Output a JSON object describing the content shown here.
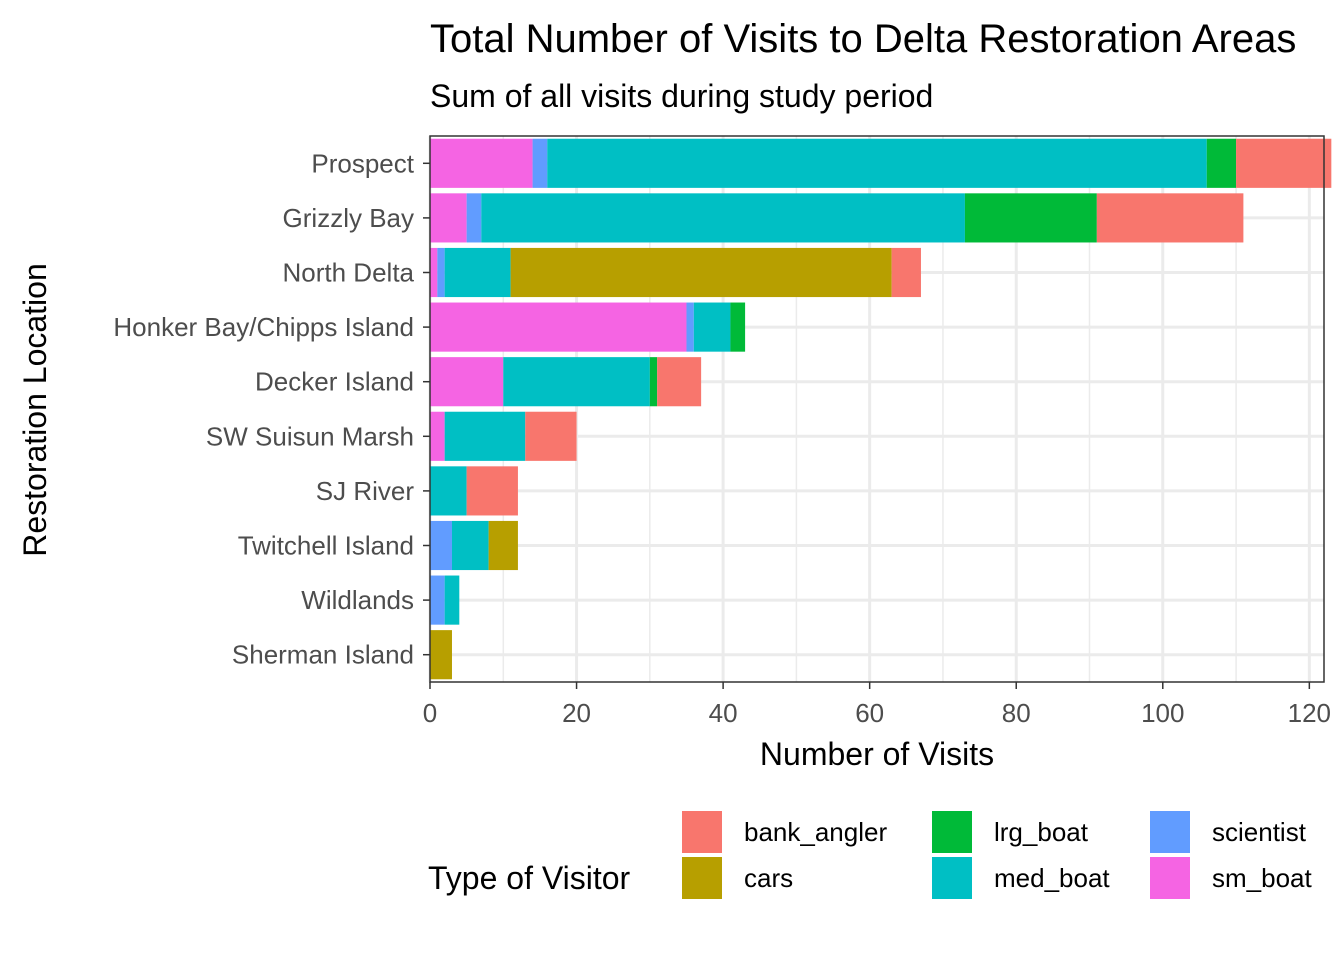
{
  "chart_data": {
    "type": "bar",
    "orientation": "horizontal",
    "stacked": true,
    "title": "Total Number of Visits to Delta Restoration Areas",
    "subtitle": "Sum of all visits during study period",
    "xlabel": "Number of Visits",
    "ylabel": "Restoration Location",
    "xlim": [
      0,
      122
    ],
    "xticks": [
      0,
      20,
      40,
      60,
      80,
      100,
      120
    ],
    "grid": true,
    "legend": {
      "title": "Type of Visitor",
      "position": "bottom"
    },
    "categories": [
      "Sherman Island",
      "Wildlands",
      "Twitchell Island",
      "SJ River",
      "SW Suisun Marsh",
      "Decker Island",
      "Honker Bay/Chipps Island",
      "North Delta",
      "Grizzly Bay",
      "Prospect"
    ],
    "stack_order": [
      "sm_boat",
      "scientist",
      "med_boat",
      "lrg_boat",
      "cars",
      "bank_angler"
    ],
    "legend_order": [
      "bank_angler",
      "cars",
      "lrg_boat",
      "med_boat",
      "scientist",
      "sm_boat"
    ],
    "series": [
      {
        "name": "sm_boat",
        "color": "#F564E3",
        "values": [
          0,
          0,
          0,
          0,
          2,
          10,
          35,
          1,
          5,
          14
        ]
      },
      {
        "name": "scientist",
        "color": "#619CFF",
        "values": [
          0,
          2,
          3,
          0,
          0,
          0,
          1,
          1,
          2,
          2
        ]
      },
      {
        "name": "med_boat",
        "color": "#00BFC4",
        "values": [
          0,
          2,
          5,
          5,
          11,
          20,
          5,
          9,
          66,
          90
        ]
      },
      {
        "name": "lrg_boat",
        "color": "#00BA38",
        "values": [
          0,
          0,
          0,
          0,
          0,
          1,
          2,
          0,
          18,
          4
        ]
      },
      {
        "name": "cars",
        "color": "#B79F00",
        "values": [
          3,
          0,
          4,
          0,
          0,
          0,
          0,
          52,
          0,
          0
        ]
      },
      {
        "name": "bank_angler",
        "color": "#F8766D",
        "values": [
          0,
          0,
          0,
          7,
          7,
          6,
          0,
          4,
          20,
          13
        ]
      }
    ]
  }
}
